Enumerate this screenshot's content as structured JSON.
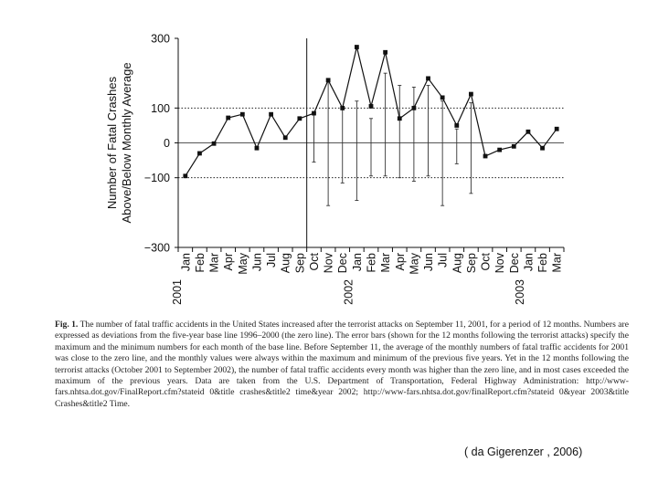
{
  "chart_data": {
    "type": "line",
    "ylabel": "Number of Fatal Crashes Above/Below Monthly Average",
    "ylabel_lines": [
      "Number of Fatal Crashes",
      "Above/Below Monthly Average"
    ],
    "ylim": [
      -300,
      300
    ],
    "yticks": [
      {
        "value": 300,
        "label": "300"
      },
      {
        "value": 100,
        "label": "100"
      },
      {
        "value": 0,
        "label": "0"
      },
      {
        "value": -100,
        "label": "−100"
      },
      {
        "value": -300,
        "label": "−300"
      }
    ],
    "dotted_gridlines": [
      100,
      -100
    ],
    "zero_line": 0,
    "event_marker_index": 8,
    "months": [
      "Jan",
      "Feb",
      "Mar",
      "Apr",
      "May",
      "Jun",
      "Jul",
      "Aug",
      "Sep",
      "Oct",
      "Nov",
      "Dec",
      "Jan",
      "Feb",
      "Mar",
      "Apr",
      "May",
      "Jun",
      "Jul",
      "Aug",
      "Sep",
      "Oct",
      "Nov",
      "Dec",
      "Jan",
      "Feb",
      "Mar"
    ],
    "years": [
      {
        "label": "2001",
        "index": 0
      },
      {
        "label": "2002",
        "index": 12
      },
      {
        "label": "2003",
        "index": 24
      }
    ],
    "values": [
      -95,
      -30,
      -2,
      72,
      82,
      -15,
      82,
      15,
      70,
      85,
      180,
      100,
      275,
      105,
      260,
      70,
      100,
      185,
      130,
      50,
      140,
      -38,
      -20,
      -10,
      32,
      -15,
      40
    ],
    "error_bars": [
      {
        "index": 9,
        "max": 80,
        "min": -55
      },
      {
        "index": 10,
        "max": 175,
        "min": -180
      },
      {
        "index": 11,
        "max": 95,
        "min": -115
      },
      {
        "index": 12,
        "max": 120,
        "min": -165
      },
      {
        "index": 13,
        "max": 70,
        "min": -95
      },
      {
        "index": 14,
        "max": 200,
        "min": -95
      },
      {
        "index": 15,
        "max": 165,
        "min": -100
      },
      {
        "index": 16,
        "max": 160,
        "min": -110
      },
      {
        "index": 17,
        "max": 165,
        "min": -95
      },
      {
        "index": 18,
        "max": 120,
        "min": -180
      },
      {
        "index": 19,
        "max": 40,
        "min": -60
      },
      {
        "index": 20,
        "max": 115,
        "min": -145
      }
    ]
  },
  "caption": {
    "fig_label": "Fig. 1.",
    "text": "The number of fatal traffic accidents in the United States increased after the terrorist attacks on September 11, 2001, for a period of 12 months. Numbers are expressed as deviations from the five-year base line 1996–2000 (the zero line). The error bars (shown for the 12 months following the terrorist attacks) specify the maximum and the minimum numbers for each month of the base line. Before September 11, the average of the monthly numbers of fatal traffic accidents for 2001 was close to the zero line, and the monthly values were always within the maximum and minimum of the previous five years. Yet in the 12 months following the terrorist attacks (October 2001 to September 2002), the number of fatal traffic accidents every month was higher than the zero line, and in most cases exceeded the maximum of the previous years. Data are taken from the U.S. Department of Transportation, Federal Highway Administration: http://www-fars.nhtsa.dot.gov/FinalReport.cfm?stateid 0&title crashes&title2 time&year 2002; http://www-fars.nhtsa.dot.gov/finalReport.cfm?stateid 0&year 2003&title Crashes&title2 Time."
  },
  "credit": "( da Gigerenzer , 2006)",
  "colors": {
    "line": "#111111",
    "marker": "#111111",
    "gridline": "#222222",
    "error_bar": "#333333"
  }
}
